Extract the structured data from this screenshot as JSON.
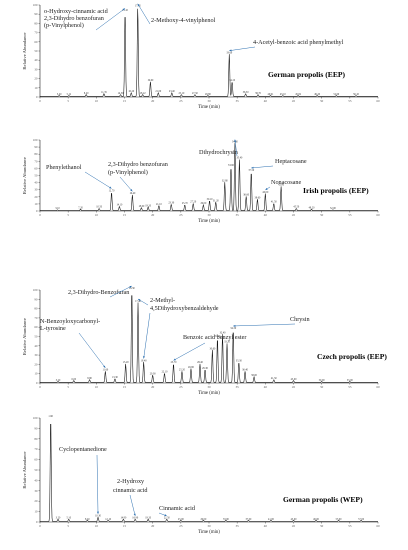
{
  "figure": {
    "ylabel": "Relative Abundance",
    "xlabel": "Time (min)"
  },
  "chart_data": [
    {
      "type": "line",
      "title": "German propolis (EEP)",
      "xlabel": "Time (min)",
      "ylabel": "Relative Abundance",
      "xlim": [
        0,
        60
      ],
      "ylim": [
        0,
        100
      ],
      "x_ticks": [
        0,
        5,
        10,
        15,
        20,
        25,
        30,
        35,
        40,
        45,
        50,
        55,
        60
      ],
      "y_ticks": [
        0,
        10,
        20,
        30,
        40,
        50,
        60,
        70,
        80,
        90,
        100
      ],
      "peaks": [
        {
          "x": 3.4,
          "y": 1
        },
        {
          "x": 5.12,
          "y": 1
        },
        {
          "x": 8.2,
          "y": 2
        },
        {
          "x": 11.35,
          "y": 3
        },
        {
          "x": 14.3,
          "y": 2
        },
        {
          "x": 15.1,
          "y": 92
        },
        {
          "x": 16.2,
          "y": 4
        },
        {
          "x": 17.35,
          "y": 97
        },
        {
          "x": 18.22,
          "y": 2
        },
        {
          "x": 19.6,
          "y": 16
        },
        {
          "x": 21.0,
          "y": 4
        },
        {
          "x": 23.4,
          "y": 4
        },
        {
          "x": 25.1,
          "y": 2
        },
        {
          "x": 27.5,
          "y": 2
        },
        {
          "x": 29.8,
          "y": 1
        },
        {
          "x": 33.6,
          "y": 46
        },
        {
          "x": 34.1,
          "y": 16
        },
        {
          "x": 36.5,
          "y": 3
        },
        {
          "x": 38.7,
          "y": 2
        },
        {
          "x": 40.91,
          "y": 1
        },
        {
          "x": 43.1,
          "y": 1
        },
        {
          "x": 45.82,
          "y": 1
        },
        {
          "x": 49.2,
          "y": 1
        },
        {
          "x": 52.6,
          "y": 1
        },
        {
          "x": 56.1,
          "y": 1
        }
      ],
      "annotations": [
        {
          "text": "o-Hydroxy-cinnamic acid",
          "x": 15.1
        },
        {
          "text": "2,3-Dihydro benzofuran",
          "x": 15.1
        },
        {
          "text": "(p-Vinylphenol)",
          "x": 15.1
        },
        {
          "text": "2-Methoxy-4-vinylphenol",
          "x": 17.35
        },
        {
          "text": "4-Acetyl-benzoic acid phenylmethyl",
          "x": 33.6
        }
      ]
    },
    {
      "type": "line",
      "title": "Irish propolis (EEP)",
      "xlabel": "Time (min)",
      "ylabel": "Relative Abundance",
      "xlim": [
        0,
        60
      ],
      "ylim": [
        0,
        100
      ],
      "x_ticks": [
        0,
        5,
        10,
        15,
        20,
        25,
        30,
        35,
        40,
        45,
        50,
        55,
        60
      ],
      "y_ticks": [
        0,
        10,
        20,
        30,
        40,
        50,
        60,
        70,
        80,
        90,
        100
      ],
      "peaks": [
        {
          "x": 3.1,
          "y": 1
        },
        {
          "x": 7.2,
          "y": 2
        },
        {
          "x": 10.5,
          "y": 3
        },
        {
          "x": 12.7,
          "y": 26
        },
        {
          "x": 14.1,
          "y": 6
        },
        {
          "x": 16.4,
          "y": 22
        },
        {
          "x": 18.0,
          "y": 4
        },
        {
          "x": 19.2,
          "y": 5
        },
        {
          "x": 21.1,
          "y": 7
        },
        {
          "x": 23.3,
          "y": 9
        },
        {
          "x": 25.7,
          "y": 8
        },
        {
          "x": 27.2,
          "y": 10
        },
        {
          "x": 29.0,
          "y": 8
        },
        {
          "x": 30.1,
          "y": 14
        },
        {
          "x": 31.2,
          "y": 12
        },
        {
          "x": 32.8,
          "y": 40
        },
        {
          "x": 33.9,
          "y": 62
        },
        {
          "x": 34.6,
          "y": 95
        },
        {
          "x": 35.4,
          "y": 72
        },
        {
          "x": 36.6,
          "y": 20
        },
        {
          "x": 37.5,
          "y": 55
        },
        {
          "x": 38.6,
          "y": 16
        },
        {
          "x": 40.0,
          "y": 24
        },
        {
          "x": 41.5,
          "y": 10
        },
        {
          "x": 42.8,
          "y": 34
        },
        {
          "x": 45.5,
          "y": 3
        },
        {
          "x": 48.2,
          "y": 2
        },
        {
          "x": 52.0,
          "y": 1
        }
      ],
      "annotations": [
        {
          "text": "Phenylethanol",
          "x": 12.7
        },
        {
          "text": "2,3-Dihydro benzofuran",
          "x": 16.4
        },
        {
          "text": "(p-Vinylphenol)",
          "x": 16.4
        },
        {
          "text": "Dihydrochrysin",
          "x": 34.6
        },
        {
          "text": "Heptacosane",
          "x": 37.5
        },
        {
          "text": "Nonacosane",
          "x": 40.0
        }
      ]
    },
    {
      "type": "line",
      "title": "Czech propolis (EEP)",
      "xlabel": "Time (min)",
      "ylabel": "Relative Abundance",
      "xlim": [
        0,
        60
      ],
      "ylim": [
        0,
        100
      ],
      "x_ticks": [
        0,
        5,
        10,
        15,
        20,
        25,
        30,
        35,
        40,
        45,
        50,
        55,
        60
      ],
      "y_ticks": [
        0,
        10,
        20,
        30,
        40,
        50,
        60,
        70,
        80,
        90,
        100
      ],
      "peaks": [
        {
          "x": 3.2,
          "y": 1
        },
        {
          "x": 6.0,
          "y": 2
        },
        {
          "x": 8.8,
          "y": 3
        },
        {
          "x": 11.6,
          "y": 12
        },
        {
          "x": 13.3,
          "y": 4
        },
        {
          "x": 15.2,
          "y": 20
        },
        {
          "x": 16.3,
          "y": 100
        },
        {
          "x": 17.4,
          "y": 86
        },
        {
          "x": 18.4,
          "y": 22
        },
        {
          "x": 20.0,
          "y": 8
        },
        {
          "x": 22.1,
          "y": 10
        },
        {
          "x": 23.7,
          "y": 20
        },
        {
          "x": 25.2,
          "y": 12
        },
        {
          "x": 26.8,
          "y": 15
        },
        {
          "x": 28.4,
          "y": 20
        },
        {
          "x": 29.3,
          "y": 14
        },
        {
          "x": 30.6,
          "y": 35
        },
        {
          "x": 31.5,
          "y": 48
        },
        {
          "x": 32.4,
          "y": 52
        },
        {
          "x": 33.2,
          "y": 42
        },
        {
          "x": 34.3,
          "y": 57
        },
        {
          "x": 35.3,
          "y": 22
        },
        {
          "x": 36.4,
          "y": 12
        },
        {
          "x": 38.0,
          "y": 6
        },
        {
          "x": 41.5,
          "y": 3
        },
        {
          "x": 45.0,
          "y": 2
        },
        {
          "x": 50.0,
          "y": 1
        },
        {
          "x": 55.0,
          "y": 1
        }
      ],
      "annotations": [
        {
          "text": "2,3-Dihydro-Benzofuran",
          "x": 16.3
        },
        {
          "text": "N-Benzoyloxycarbonyl-",
          "x": 11.6
        },
        {
          "text": "L-tyrosine",
          "x": 11.6
        },
        {
          "text": "2-Methyl-",
          "x": 17.4
        },
        {
          "text": "4,5Dihydroxybenzaldehyde",
          "x": 18.4
        },
        {
          "text": "Benzoic acid benzyl ester",
          "x": 23.7
        },
        {
          "text": "Chrysin",
          "x": 34.3
        }
      ]
    },
    {
      "type": "line",
      "title": "German propolis (WEP)",
      "xlabel": "Time (min)",
      "ylabel": "Relative Abundance",
      "xlim": [
        0,
        60
      ],
      "ylim": [
        0,
        100
      ],
      "x_ticks": [
        0,
        5,
        10,
        15,
        20,
        25,
        30,
        35,
        40,
        45,
        50,
        55,
        60
      ],
      "y_ticks": [
        0,
        10,
        20,
        30,
        40,
        50,
        60,
        70,
        80,
        90,
        100
      ],
      "peaks": [
        {
          "x": 1.9,
          "y": 100
        },
        {
          "x": 3.2,
          "y": 2
        },
        {
          "x": 5.1,
          "y": 2
        },
        {
          "x": 8.4,
          "y": 1
        },
        {
          "x": 10.3,
          "y": 4
        },
        {
          "x": 12.1,
          "y": 1
        },
        {
          "x": 14.8,
          "y": 2
        },
        {
          "x": 16.9,
          "y": 2
        },
        {
          "x": 19.2,
          "y": 2
        },
        {
          "x": 22.5,
          "y": 2
        },
        {
          "x": 25.0,
          "y": 1
        },
        {
          "x": 29.0,
          "y": 1
        },
        {
          "x": 33.0,
          "y": 1
        },
        {
          "x": 37.0,
          "y": 1
        },
        {
          "x": 41.0,
          "y": 1
        },
        {
          "x": 45.0,
          "y": 1
        },
        {
          "x": 49.0,
          "y": 1
        },
        {
          "x": 53.0,
          "y": 1
        },
        {
          "x": 57.0,
          "y": 1
        }
      ],
      "annotations": [
        {
          "text": "Cyclopentanedione",
          "x": 10.3
        },
        {
          "text": "2-Hydroxy",
          "x": 16.9
        },
        {
          "text": "cinnamic acid",
          "x": 16.9
        },
        {
          "text": "Cinnamic acid",
          "x": 22.5
        }
      ]
    }
  ]
}
